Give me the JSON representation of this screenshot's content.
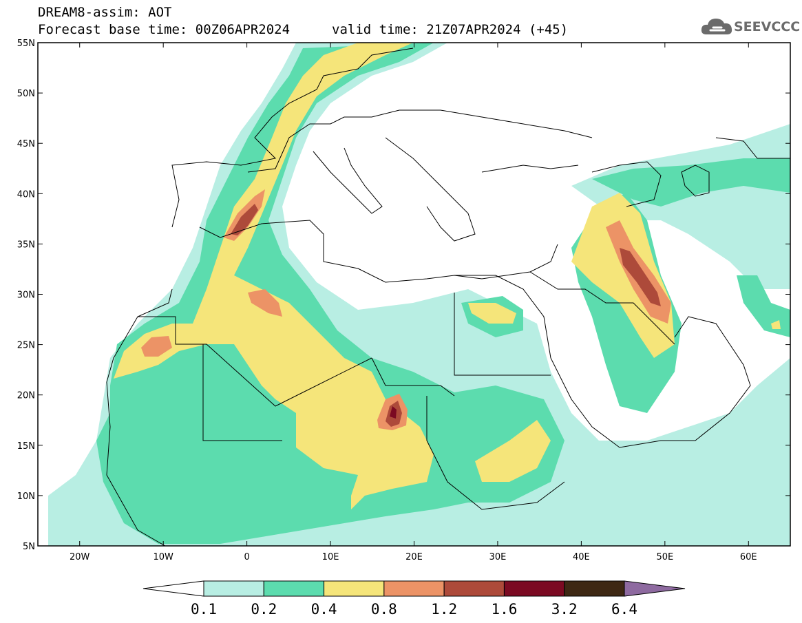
{
  "title": {
    "line1": "DREAM8-assim: AOT",
    "line2": "Forecast base time: 00Z06APR2024",
    "valid": "valid time: 21Z07APR2024 (+45)"
  },
  "logo": {
    "text": "SEEVCCC",
    "icon": "cloud-icon"
  },
  "map": {
    "lon_range": [
      -25,
      65
    ],
    "lat_range": [
      5,
      55
    ],
    "lat_labels": [
      "55N",
      "50N",
      "45N",
      "40N",
      "35N",
      "30N",
      "25N",
      "20N",
      "15N",
      "10N",
      "5N"
    ],
    "lon_labels": [
      "20W",
      "10W",
      "0",
      "10E",
      "20E",
      "30E",
      "40E",
      "50E",
      "60E"
    ]
  },
  "colorbar": {
    "labels": [
      "0.1",
      "0.2",
      "0.4",
      "0.8",
      "1.2",
      "1.6",
      "3.2",
      "6.4"
    ],
    "colors": [
      "#ffffff",
      "#b8eee3",
      "#5cdcae",
      "#f5e57a",
      "#ec9366",
      "#ad4a3a",
      "#7b0a22",
      "#3e2814",
      "#8e6aa0"
    ]
  },
  "colors": {
    "c1": "#b8eee3",
    "c2": "#5cdcae",
    "c3": "#f5e57a",
    "c4": "#ec9366",
    "c5": "#ad4a3a",
    "c6": "#7b0a22"
  }
}
